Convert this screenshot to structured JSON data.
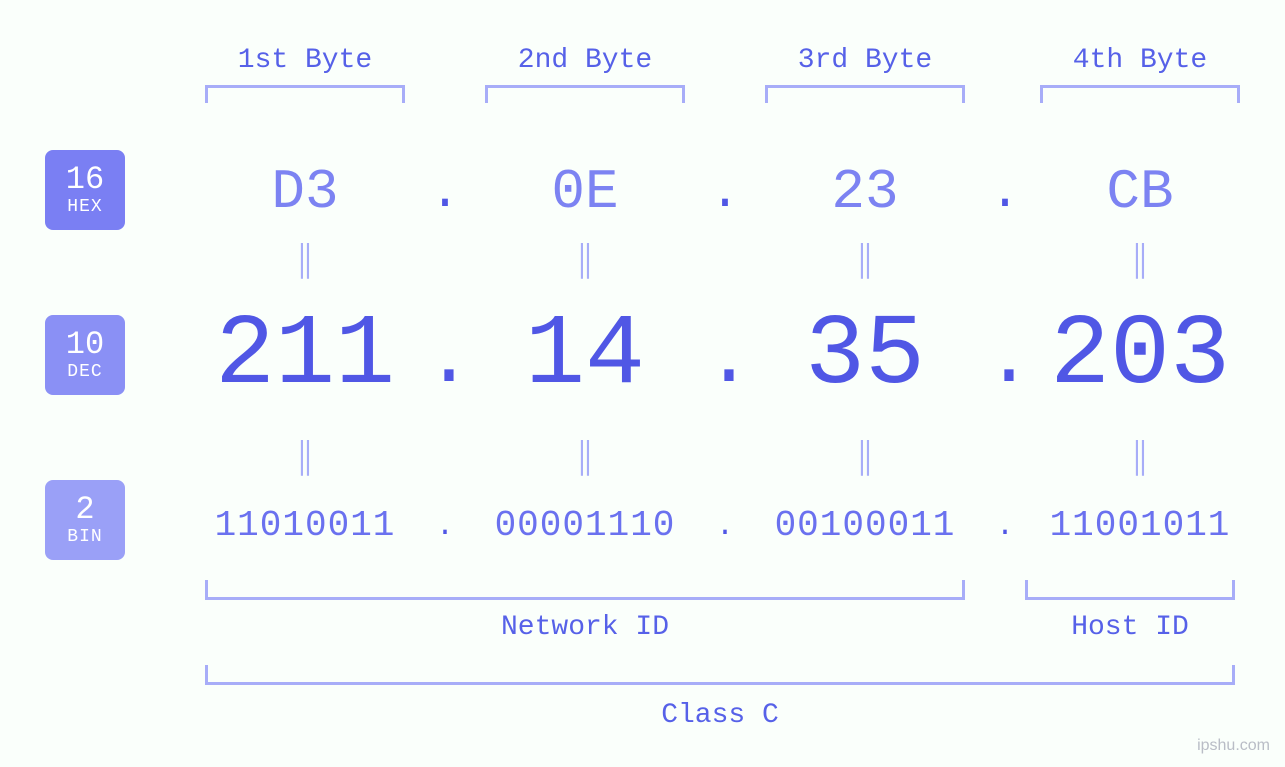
{
  "colors": {
    "background": "#fafffb",
    "badge_hex_bg": "#7a7ff3",
    "badge_dec_bg": "#8a90f5",
    "badge_bin_bg": "#9aa0f7",
    "badge_text": "#ffffff",
    "header_text": "#5661e8",
    "bracket": "#a7adf8",
    "hex_text": "#7c83f2",
    "dec_text": "#5057e5",
    "bin_text": "#6a71ef",
    "separator": "#5057e5",
    "equals": "#a7adf8",
    "watermark": "#b9bdc6"
  },
  "typography": {
    "font_family": "Courier New, monospace",
    "byte_header_fontsize": 28,
    "hex_fontsize": 56,
    "dec_fontsize": 100,
    "bin_fontsize": 36,
    "badge_num_fontsize": 32,
    "badge_label_fontsize": 18,
    "bottom_label_fontsize": 28,
    "equals_fontsize": 36
  },
  "badges": {
    "hex": {
      "number": "16",
      "label": "HEX"
    },
    "dec": {
      "number": "10",
      "label": "DEC"
    },
    "bin": {
      "number": "2",
      "label": "BIN"
    }
  },
  "byte_headers": [
    "1st Byte",
    "2nd Byte",
    "3rd Byte",
    "4th Byte"
  ],
  "bytes": [
    {
      "hex": "D3",
      "dec": "211",
      "bin": "11010011"
    },
    {
      "hex": "0E",
      "dec": "14",
      "bin": "00001110"
    },
    {
      "hex": "23",
      "dec": "35",
      "bin": "00100011"
    },
    {
      "hex": "CB",
      "dec": "203",
      "bin": "11001011"
    }
  ],
  "separator": ".",
  "equals_symbol": "‖",
  "bottom_labels": {
    "network_id": "Network ID",
    "host_id": "Host ID",
    "class": "Class C"
  },
  "class_structure": {
    "network_id_bytes": [
      0,
      1,
      2
    ],
    "host_id_bytes": [
      3
    ]
  },
  "watermark": "ipshu.com"
}
